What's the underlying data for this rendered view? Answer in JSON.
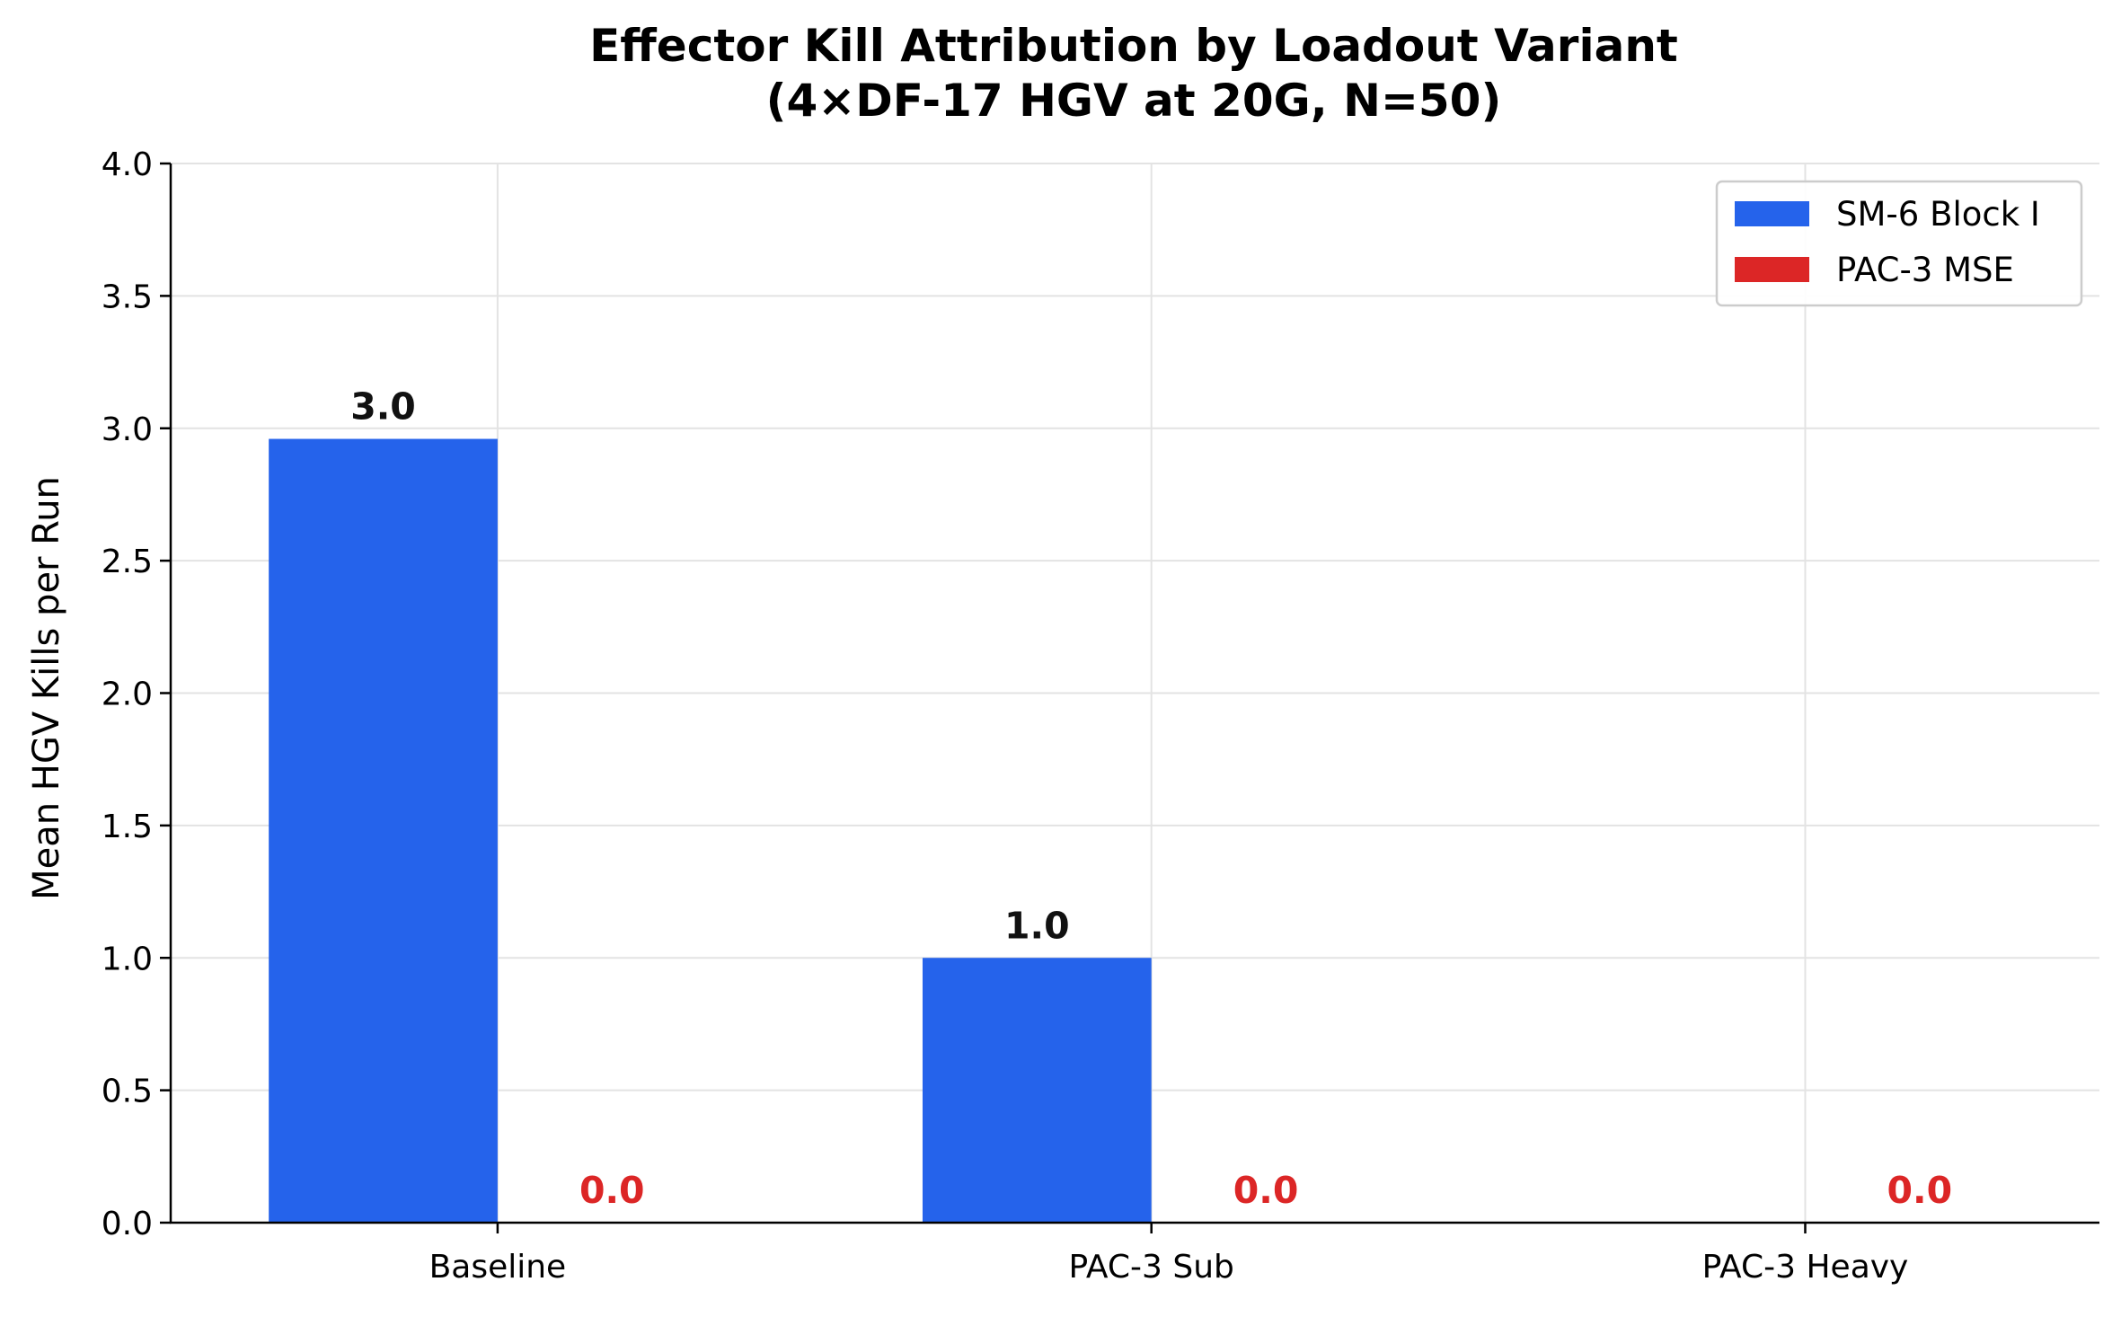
{
  "chart_data": {
    "type": "bar",
    "title": "Effector Kill Attribution by Loadout Variant",
    "subtitle": "(4×DF-17 HGV at 20G, N=50)",
    "xlabel": "",
    "ylabel": "Mean HGV Kills per Run",
    "categories": [
      "Baseline",
      "PAC-3 Sub",
      "PAC-3 Heavy"
    ],
    "ylim": [
      0,
      4.0
    ],
    "yticks": [
      0.0,
      0.5,
      1.0,
      1.5,
      2.0,
      2.5,
      3.0,
      3.5,
      4.0
    ],
    "ytick_labels": [
      "0.0",
      "0.5",
      "1.0",
      "1.5",
      "2.0",
      "2.5",
      "3.0",
      "3.5",
      "4.0"
    ],
    "grid": true,
    "legend_position": "top-right",
    "series": [
      {
        "name": "SM-6 Block I",
        "color": "#2563eb",
        "values": [
          2.96,
          1.0,
          0.0
        ],
        "labels": [
          "3.0",
          "1.0",
          null
        ]
      },
      {
        "name": "PAC-3 MSE",
        "color": "#dc2626",
        "values": [
          0.0,
          0.0,
          0.0
        ],
        "labels": [
          "0.0",
          "0.0",
          "0.0"
        ]
      }
    ]
  }
}
